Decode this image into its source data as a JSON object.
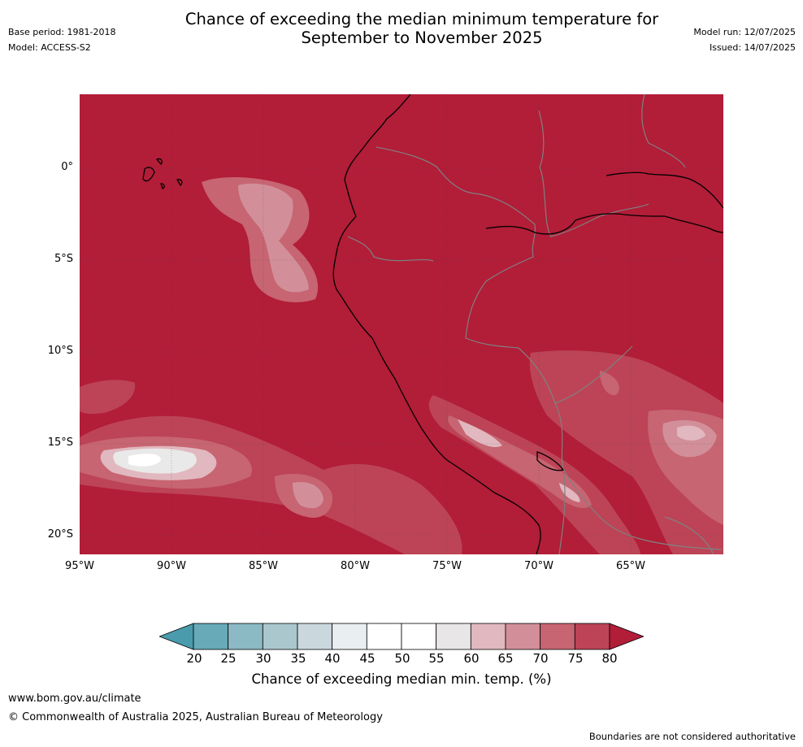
{
  "title": {
    "line1": "Chance of exceeding the median minimum temperature for",
    "line2": "September to November 2025"
  },
  "meta_left": {
    "base_period": "Base period: 1981-2018",
    "model": "Model: ACCESS-S2"
  },
  "meta_right": {
    "model_run": "Model run: 12/07/2025",
    "issued": "Issued: 14/07/2025"
  },
  "map": {
    "region": "Western South America and Eastern Pacific",
    "lat_labels": [
      "0°",
      "5°S",
      "10°S",
      "15°S",
      "20°S"
    ],
    "lon_labels": [
      "95°W",
      "90°W",
      "85°W",
      "80°W",
      "75°W",
      "70°W",
      "65°W"
    ],
    "lat_values": [
      0,
      -5,
      -10,
      -15,
      -20
    ],
    "lon_values": [
      -95,
      -90,
      -85,
      -80,
      -75,
      -70,
      -65
    ],
    "extent": {
      "lon_min": -95,
      "lon_max": -60,
      "lat_min": -21,
      "lat_max": 4
    },
    "background_color": "#b21d38",
    "coastline_color": "#000000",
    "border_color": "#808080",
    "grid": "dotted"
  },
  "colorbar": {
    "ticks": [
      "20",
      "25",
      "30",
      "35",
      "40",
      "45",
      "50",
      "55",
      "60",
      "65",
      "70",
      "75",
      "80"
    ],
    "colors": [
      "#4a9bab",
      "#68aab7",
      "#8bb9c4",
      "#aac7cd",
      "#cad8dd",
      "#e9eef0",
      "#ffffff",
      "#ffffff",
      "#e8e6e7",
      "#e1b8bf",
      "#d28f99",
      "#c76572",
      "#bc4456",
      "#b21d38"
    ],
    "label": "Chance of exceeding median min. temp. (%)"
  },
  "footer": {
    "url": "www.bom.gov.au/climate",
    "copyright": "© Commonwealth of Australia 2025, Australian Bureau of Meteorology",
    "disclaimer": "Boundaries are not considered authoritative"
  }
}
